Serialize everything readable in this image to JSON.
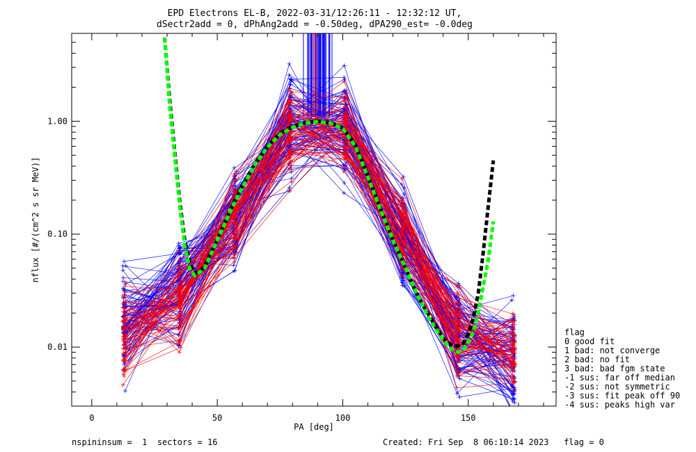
{
  "chart_data": {
    "type": "line",
    "title": "EPD Electrons EL-B, 2022-03-31/12:26:11 - 12:32:12 UT,",
    "subtitle": "dSectr2add = 0, dPhAng2add = -0.50deg, dPA290_est=  -0.0deg",
    "xlabel": "PA [deg]",
    "ylabel": "nflux [#/(cm^2 s sr MeV)]",
    "xlim": [
      -8,
      185
    ],
    "ylim": [
      0.003,
      6
    ],
    "y_scale": "log",
    "grid": false,
    "x_ticks": [
      0,
      50,
      100,
      150
    ],
    "x_tick_labels": [
      "0",
      "50",
      "100",
      "150"
    ],
    "y_ticks": [
      0.01,
      0.1,
      1.0
    ],
    "y_tick_labels": [
      "0.01",
      "0.10",
      "1.00"
    ],
    "sector_pa": [
      13,
      35,
      57,
      79,
      101,
      124,
      146,
      168
    ],
    "series": [
      {
        "color": "#0000ff",
        "style": "thin lines with + markers",
        "groups": 90,
        "sector_medians": [
          0.016,
          0.03,
          0.13,
          0.85,
          0.85,
          0.09,
          0.012,
          0.008
        ],
        "spread": 0.5
      },
      {
        "color": "#ff0000",
        "style": "thin lines with + markers",
        "groups": 60,
        "sector_medians": [
          0.014,
          0.025,
          0.14,
          0.8,
          0.8,
          0.1,
          0.014,
          0.009
        ],
        "spread": 0.45
      },
      {
        "color": "#000000",
        "style": "thick dashed fit",
        "x": [
          29,
          31,
          33,
          35,
          37,
          39,
          41,
          43,
          45,
          50,
          55,
          60,
          65,
          70,
          75,
          80,
          85,
          90,
          95,
          100,
          105,
          110,
          115,
          120,
          125,
          130,
          135,
          140,
          143,
          146,
          148,
          150,
          152,
          154,
          156,
          158,
          160
        ],
        "y": [
          5.5,
          1.6,
          0.55,
          0.2,
          0.09,
          0.055,
          0.045,
          0.047,
          0.052,
          0.09,
          0.16,
          0.27,
          0.42,
          0.6,
          0.78,
          0.9,
          0.97,
          1.0,
          0.97,
          0.87,
          0.62,
          0.33,
          0.17,
          0.09,
          0.05,
          0.028,
          0.018,
          0.012,
          0.0105,
          0.0102,
          0.0108,
          0.013,
          0.018,
          0.03,
          0.07,
          0.18,
          0.45
        ]
      },
      {
        "color": "#00ff00",
        "style": "thick dashed fit",
        "x": [
          29,
          31,
          33,
          35,
          37,
          39,
          41,
          43,
          45,
          50,
          55,
          60,
          65,
          70,
          75,
          80,
          85,
          90,
          95,
          100,
          105,
          110,
          115,
          120,
          125,
          130,
          135,
          140,
          143,
          146,
          148,
          150,
          152,
          154,
          156,
          158,
          160
        ],
        "y": [
          5.5,
          1.4,
          0.5,
          0.18,
          0.08,
          0.05,
          0.043,
          0.046,
          0.05,
          0.088,
          0.155,
          0.26,
          0.41,
          0.59,
          0.76,
          0.88,
          0.96,
          0.99,
          0.96,
          0.86,
          0.6,
          0.32,
          0.165,
          0.088,
          0.05,
          0.028,
          0.017,
          0.0115,
          0.0097,
          0.009,
          0.0095,
          0.011,
          0.0135,
          0.02,
          0.035,
          0.06,
          0.13
        ]
      }
    ],
    "legend_title": "flag",
    "legend_items": [
      " 0 good fit",
      " 1 bad: not converge",
      " 2 bad: no fit",
      " 3 bad: bad fgm state",
      "-1 sus: far off median",
      "-2 sus: not symmetric",
      "-3 sus: fit peak off 90",
      "-4 sus: peaks high var"
    ],
    "legend_position": "right"
  },
  "footer": {
    "left": "nspininsum =  1  sectors = 16",
    "right": "Created: Fri Sep  8 06:10:14 2023   flag = 0"
  }
}
